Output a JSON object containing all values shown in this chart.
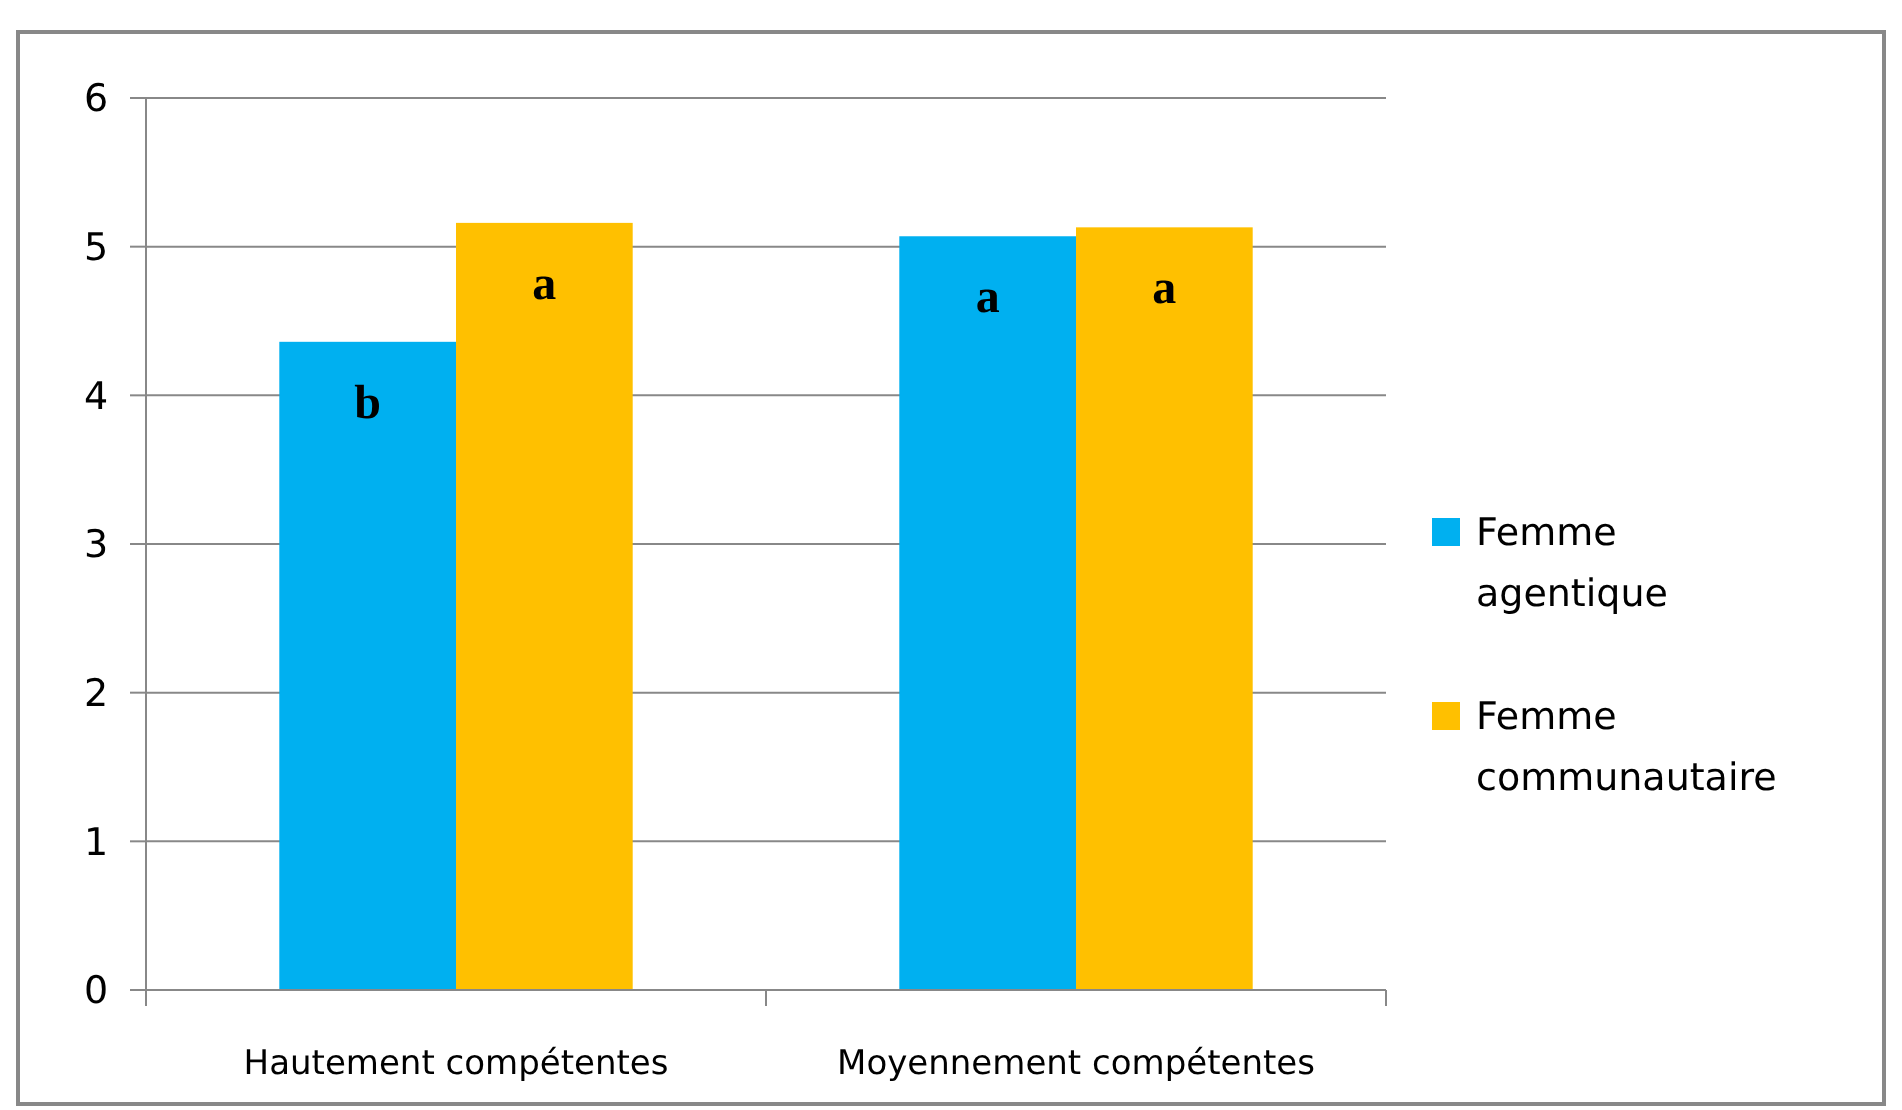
{
  "chart_data": {
    "type": "bar",
    "categories": [
      "Hautement compétentes",
      "Moyennement compétentes"
    ],
    "series": [
      {
        "name": "Femme agentique",
        "color": "#00b0f0",
        "values": [
          4.36,
          5.07
        ]
      },
      {
        "name": "Femme communautaire",
        "color": "#ffc000",
        "values": [
          5.16,
          5.13
        ]
      }
    ],
    "ylim": [
      0,
      6
    ],
    "yticks": [
      0,
      1,
      2,
      3,
      4,
      5,
      6
    ],
    "grid": "y",
    "legend": "right",
    "annotations": [
      "b",
      "a",
      "a",
      "a"
    ]
  }
}
